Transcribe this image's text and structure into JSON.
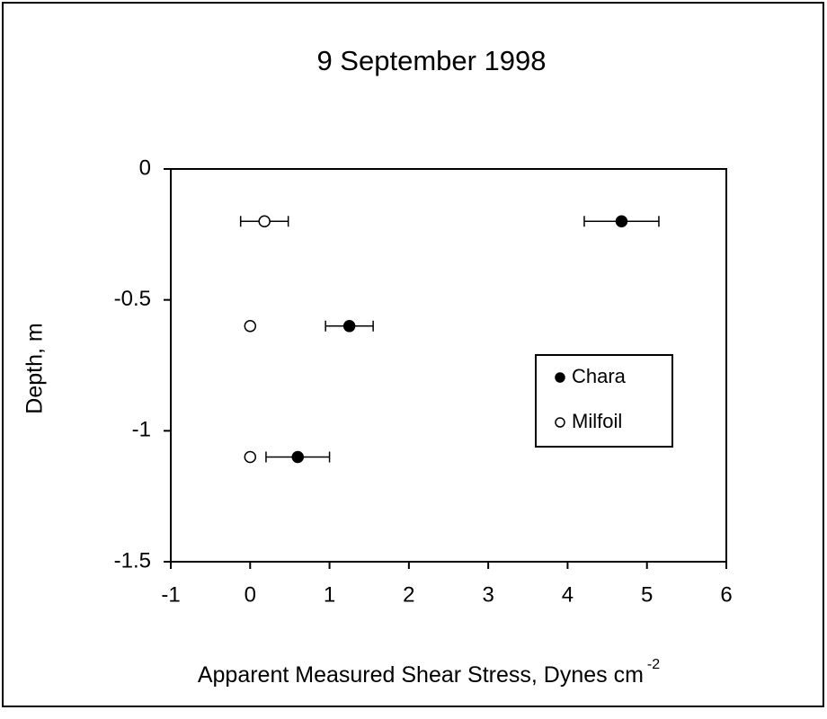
{
  "chart_data": {
    "type": "scatter",
    "title": "9 September 1998",
    "x_label": "Apparent Measured Shear Stress, Dynes cm",
    "x_label_superscript": "-2",
    "y_label": "Depth, m",
    "series": [
      {
        "name": "Chara",
        "color": "#000000",
        "marker": "filled",
        "x": [
          4.68,
          1.25,
          0.6
        ],
        "values": [
          -0.2,
          -0.6,
          -1.1
        ],
        "x_errors": [
          0.47,
          0.3,
          0.4
        ]
      },
      {
        "name": "Milfoil",
        "color": "#000000",
        "marker": "open",
        "x": [
          0.18,
          0,
          0
        ],
        "values": [
          -0.2,
          -0.6,
          -1.1
        ],
        "x_errors": [
          0.3,
          null,
          null
        ]
      }
    ],
    "xlim": [
      -1,
      6
    ],
    "xticks": [
      -1,
      0,
      1,
      2,
      3,
      4,
      5,
      6
    ],
    "ylim": [
      -1.5,
      0
    ],
    "yticks": [
      0,
      -0.5,
      -1,
      -1.5
    ],
    "grid": false,
    "legend": "right"
  }
}
